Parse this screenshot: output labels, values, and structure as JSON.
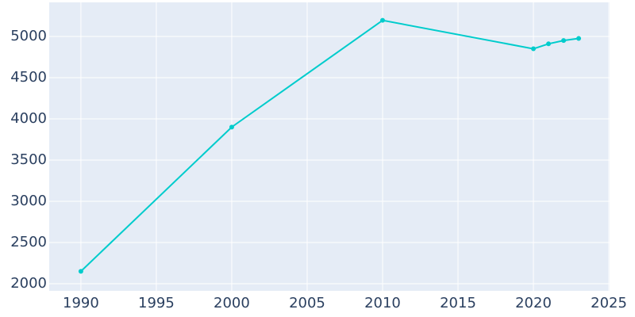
{
  "chart_data": {
    "type": "line",
    "x": [
      1990,
      2000,
      2010,
      2020,
      2021,
      2022,
      2023
    ],
    "series": [
      {
        "color": "#00cccc",
        "values": [
          2150,
          3900,
          5195,
          4850,
          4910,
          4950,
          4975
        ]
      }
    ],
    "xlim": [
      1987.9,
      2025.05
    ],
    "xticks": [
      1990,
      1995,
      2000,
      2005,
      2010,
      2015,
      2020,
      2025
    ],
    "ylim": [
      1913,
      5413
    ],
    "yticks": [
      2000,
      2500,
      3000,
      3500,
      4000,
      4500,
      5000
    ],
    "grid": true
  }
}
